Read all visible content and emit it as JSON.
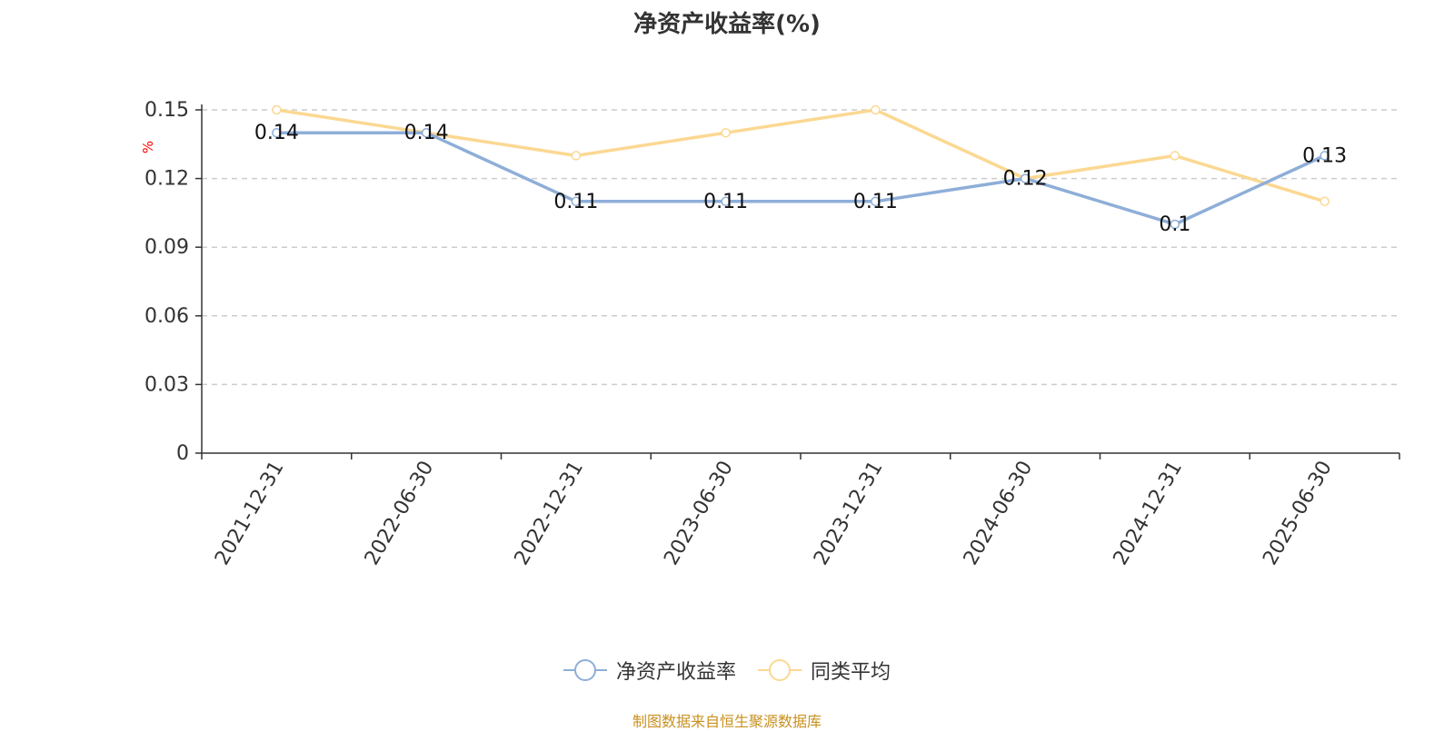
{
  "chart_data": {
    "type": "line",
    "title": "净资产收益率(%)",
    "ylabel": "%",
    "xlabel": "",
    "categories": [
      "2021-12-31",
      "2022-06-30",
      "2022-12-31",
      "2023-06-30",
      "2023-12-31",
      "2024-06-30",
      "2024-12-31",
      "2025-06-30"
    ],
    "ylim": [
      0,
      0.15
    ],
    "yticks": [
      "0",
      "0.03",
      "0.06",
      "0.09",
      "0.12",
      "0.15"
    ],
    "grid": true,
    "legend_position": "bottom",
    "series": [
      {
        "name": "净资产收益率",
        "color": "#8eaed8",
        "values": [
          0.14,
          0.14,
          0.11,
          0.11,
          0.11,
          0.12,
          0.1,
          0.13
        ],
        "labels": [
          "0.14",
          "0.14",
          "0.11",
          "0.11",
          "0.11",
          "0.12",
          "0.1",
          "0.13"
        ]
      },
      {
        "name": "同类平均",
        "color": "#fbd892",
        "values": [
          0.15,
          0.14,
          0.13,
          0.14,
          0.15,
          0.12,
          0.13,
          0.11
        ]
      }
    ]
  },
  "footer": "制图数据来自恒生聚源数据库",
  "colors": {
    "axis": "#333333",
    "grid": "#cccccc",
    "ylabel": "#ff0000",
    "footer": "#c9901e"
  }
}
